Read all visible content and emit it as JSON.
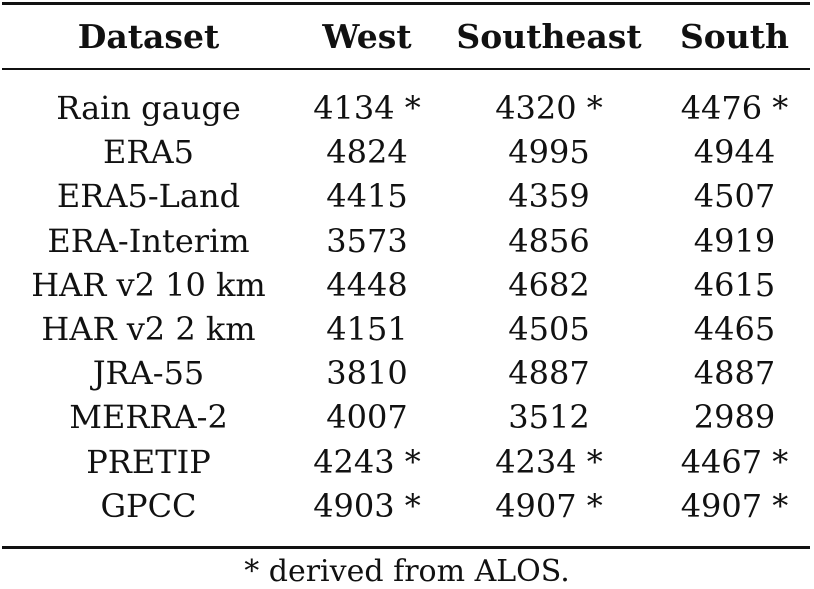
{
  "table": {
    "headers": [
      "Dataset",
      "West",
      "Southeast",
      "South"
    ],
    "rows": [
      [
        "Rain gauge",
        "4134 *",
        "4320 *",
        "4476 *"
      ],
      [
        "ERA5",
        "4824",
        "4995",
        "4944"
      ],
      [
        "ERA5-Land",
        "4415",
        "4359",
        "4507"
      ],
      [
        "ERA-Interim",
        "3573",
        "4856",
        "4919"
      ],
      [
        "HAR v2 10 km",
        "4448",
        "4682",
        "4615"
      ],
      [
        "HAR v2 2 km",
        "4151",
        "4505",
        "4465"
      ],
      [
        "JRA-55",
        "3810",
        "4887",
        "4887"
      ],
      [
        "MERRA-2",
        "4007",
        "3512",
        "2989"
      ],
      [
        "PRETIP",
        "4243 *",
        "4234 *",
        "4467 *"
      ],
      [
        "GPCC",
        "4903 *",
        "4907 *",
        "4907 *"
      ]
    ]
  },
  "footnote": "* derived from ALOS."
}
